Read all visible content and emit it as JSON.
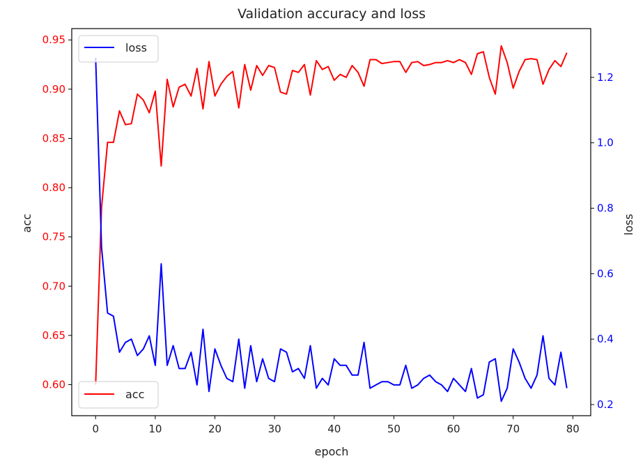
{
  "chart_data": {
    "type": "line",
    "title": "Validation accuracy and loss",
    "xlabel": "epoch",
    "ylabel_left": "acc",
    "ylabel_right": "loss",
    "xlim": [
      -4,
      83
    ],
    "ylim_left": [
      0.5685,
      0.9615
    ],
    "ylim_right": [
      0.166,
      1.349
    ],
    "xticks": [
      0,
      10,
      20,
      30,
      40,
      50,
      60,
      70,
      80
    ],
    "yticks_left": [
      "0.60",
      "0.65",
      "0.70",
      "0.75",
      "0.80",
      "0.85",
      "0.90",
      "0.95"
    ],
    "yticks_right": [
      "0.2",
      "0.4",
      "0.6",
      "0.8",
      "1.0",
      "1.2"
    ],
    "grid": false,
    "colors": {
      "acc": "#ff0000",
      "loss": "#0000ff",
      "left_ticks": "#ff0000",
      "right_ticks": "#0000ff"
    },
    "legend": [
      {
        "label": "loss",
        "color": "#0000ff",
        "position": "upper left"
      },
      {
        "label": "acc",
        "color": "#ff0000",
        "position": "lower left"
      }
    ],
    "x": [
      0,
      1,
      2,
      3,
      4,
      5,
      6,
      7,
      8,
      9,
      10,
      11,
      12,
      13,
      14,
      15,
      16,
      17,
      18,
      19,
      20,
      21,
      22,
      23,
      24,
      25,
      26,
      27,
      28,
      29,
      30,
      31,
      32,
      33,
      34,
      35,
      36,
      37,
      38,
      39,
      40,
      41,
      42,
      43,
      44,
      45,
      46,
      47,
      48,
      49,
      50,
      51,
      52,
      53,
      54,
      55,
      56,
      57,
      58,
      59,
      60,
      61,
      62,
      63,
      64,
      65,
      66,
      67,
      68,
      69,
      70,
      71,
      72,
      73,
      74,
      75,
      76,
      77,
      78,
      79
    ],
    "series": [
      {
        "name": "acc",
        "axis": "left",
        "values": [
          0.6,
          0.78,
          0.846,
          0.846,
          0.878,
          0.864,
          0.865,
          0.895,
          0.889,
          0.876,
          0.898,
          0.822,
          0.91,
          0.882,
          0.902,
          0.905,
          0.893,
          0.921,
          0.88,
          0.928,
          0.893,
          0.905,
          0.913,
          0.918,
          0.881,
          0.925,
          0.899,
          0.924,
          0.914,
          0.924,
          0.922,
          0.897,
          0.895,
          0.919,
          0.917,
          0.925,
          0.894,
          0.929,
          0.92,
          0.923,
          0.909,
          0.915,
          0.912,
          0.924,
          0.917,
          0.903,
          0.93,
          0.93,
          0.926,
          0.927,
          0.928,
          0.928,
          0.917,
          0.927,
          0.928,
          0.924,
          0.925,
          0.927,
          0.927,
          0.929,
          0.927,
          0.93,
          0.927,
          0.915,
          0.936,
          0.938,
          0.912,
          0.895,
          0.944,
          0.927,
          0.901,
          0.918,
          0.93,
          0.931,
          0.93,
          0.905,
          0.92,
          0.929,
          0.923,
          0.937
        ]
      },
      {
        "name": "loss",
        "axis": "right",
        "values": [
          1.26,
          0.68,
          0.48,
          0.47,
          0.36,
          0.39,
          0.4,
          0.35,
          0.37,
          0.41,
          0.32,
          0.63,
          0.32,
          0.38,
          0.31,
          0.31,
          0.36,
          0.26,
          0.43,
          0.24,
          0.37,
          0.32,
          0.28,
          0.27,
          0.4,
          0.25,
          0.38,
          0.27,
          0.34,
          0.28,
          0.27,
          0.37,
          0.36,
          0.3,
          0.31,
          0.28,
          0.38,
          0.25,
          0.28,
          0.26,
          0.34,
          0.32,
          0.32,
          0.29,
          0.29,
          0.39,
          0.25,
          0.26,
          0.27,
          0.27,
          0.26,
          0.26,
          0.32,
          0.25,
          0.26,
          0.28,
          0.29,
          0.27,
          0.26,
          0.24,
          0.28,
          0.26,
          0.24,
          0.31,
          0.22,
          0.23,
          0.33,
          0.34,
          0.21,
          0.25,
          0.37,
          0.33,
          0.28,
          0.25,
          0.29,
          0.41,
          0.28,
          0.26,
          0.36,
          0.25
        ]
      }
    ]
  }
}
